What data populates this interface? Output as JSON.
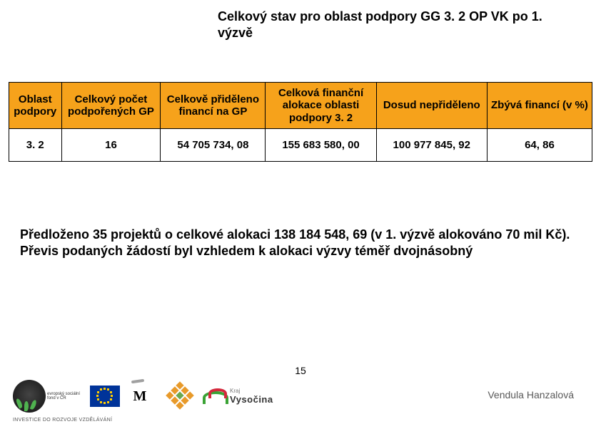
{
  "title": "Celkový stav pro oblast podpory GG 3. 2 OP VK po 1. výzvě",
  "table": {
    "header_bg": "#f6a21b",
    "columns": [
      {
        "label": "Oblast podpory",
        "width": "9%"
      },
      {
        "label": "Celkový počet podpořených GP",
        "width": "17%"
      },
      {
        "label": "Celkově přiděleno financí na GP",
        "width": "18%"
      },
      {
        "label": "Celková finanční alokace oblasti podpory 3. 2",
        "width": "19%"
      },
      {
        "label": "Dosud nepřiděleno",
        "width": "19%"
      },
      {
        "label": "Zbývá financí (v %)",
        "width": "18%"
      }
    ],
    "rows": [
      [
        "3. 2",
        "16",
        "54 705 734, 08",
        "155 683 580, 00",
        "100 977 845, 92",
        "64, 86"
      ]
    ]
  },
  "body_text": "Předloženo 35 projektů o celkové alokaci 138 184 548, 69 (v 1. výzvě alokováno 70 mil Kč). Převis podaných žádostí byl vzhledem k alokaci výzvy téměř dvojnásobný",
  "page_number": "15",
  "author": "Vendula Hanzalová",
  "footer": {
    "esf_caption": "evropský sociální fond v ČR",
    "vysocina_label_small": "Kraj",
    "vysocina_label_big": "Vysočina",
    "invest_line": "INVESTICE DO ROZVOJE VZDĚLÁVÁNÍ"
  },
  "colors": {
    "text": "#000000",
    "muted": "#595959",
    "header_bg": "#f6a21b",
    "eu_blue": "#003399",
    "eu_gold": "#ffcc00"
  }
}
